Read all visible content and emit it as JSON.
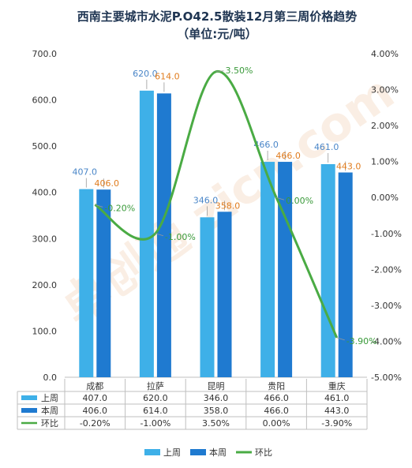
{
  "chart_data": {
    "type": "bar",
    "title": "西南主要城市水泥P.O42.5散装12月第三周价格趋势",
    "subtitle": "（单位:元/吨）",
    "watermark": "卓创通 zicn.com",
    "categories": [
      "成都",
      "拉萨",
      "昆明",
      "贵阳",
      "重庆"
    ],
    "series": [
      {
        "name": "上周",
        "type": "bar",
        "axis": "left",
        "color": "#3eb0e8",
        "values": [
          407.0,
          620.0,
          346.0,
          466.0,
          461.0
        ],
        "labels": [
          "407.0",
          "620.0",
          "346.0",
          "466.0",
          "461.0"
        ]
      },
      {
        "name": "本周",
        "type": "bar",
        "axis": "left",
        "color": "#1f7ad0",
        "values": [
          406.0,
          614.0,
          358.0,
          466.0,
          443.0
        ],
        "labels": [
          "406.0",
          "614.0",
          "358.0",
          "466.0",
          "443.0"
        ]
      },
      {
        "name": "环比",
        "type": "line",
        "axis": "right",
        "color": "#4aab44",
        "values": [
          -0.2,
          -1.0,
          3.5,
          0.0,
          -3.9
        ],
        "labels": [
          "-0.20%",
          "-1.00%",
          "3.50%",
          "0.00%",
          "-3.90%"
        ]
      }
    ],
    "left_axis": {
      "min": 0,
      "max": 700,
      "ticks": [
        "0.0",
        "100.0",
        "200.0",
        "300.0",
        "400.0",
        "500.0",
        "600.0",
        "700.0"
      ]
    },
    "right_axis": {
      "min": -5,
      "max": 4,
      "ticks": [
        "-5.00%",
        "-4.00%",
        "-3.00%",
        "-2.00%",
        "-1.00%",
        "0.00%",
        "1.00%",
        "2.00%",
        "3.00%",
        "4.00%"
      ]
    },
    "table": {
      "rows": [
        {
          "name": "上周",
          "cells": [
            "407.0",
            "620.0",
            "346.0",
            "466.0",
            "461.0"
          ]
        },
        {
          "name": "本周",
          "cells": [
            "406.0",
            "614.0",
            "358.0",
            "466.0",
            "443.0"
          ]
        },
        {
          "name": "环比",
          "cells": [
            "-0.20%",
            "-1.00%",
            "3.50%",
            "0.00%",
            "-3.90%"
          ]
        }
      ]
    },
    "legend": [
      "上周",
      "本周",
      "环比"
    ],
    "legend_position": "bottom",
    "label_colors": {
      "prev": "#4a86c8",
      "curr": "#e07c1e",
      "line": "#3a9a3a"
    }
  }
}
